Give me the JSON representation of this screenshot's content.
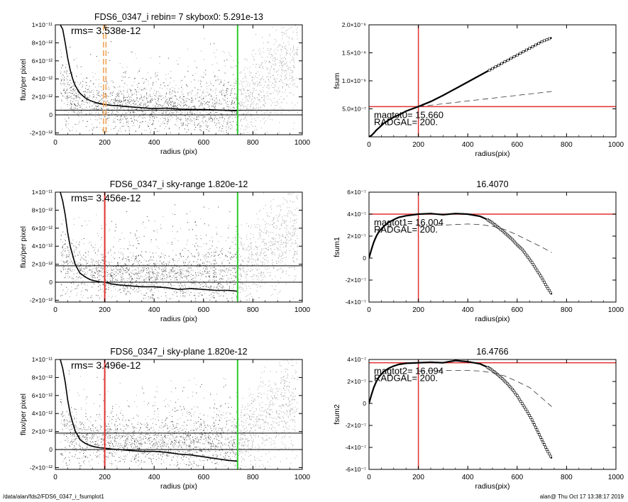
{
  "footer": {
    "path": "/data/alan/fds2/FDS6_0347_i_fsumplot1",
    "stamp": "alan@  Thu Oct 17 13:38:17 2019"
  },
  "colors": {
    "scatter_light": "#a6a6a6",
    "scatter_dark": "#404040",
    "red": "#e03030",
    "green": "#2ecc2e",
    "orange": "#f0a050"
  },
  "chart_data": [
    {
      "type": "scatter",
      "title": "FDS6_0347_i rebin= 7    skybox0:  5.291e-13",
      "xlabel": "radius (pix)",
      "ylabel": "flux/per pixel",
      "xlim": [
        0,
        1000
      ],
      "ylim": [
        -2.2e-12,
        1e-11
      ],
      "xticks": [
        0,
        200,
        400,
        600,
        800,
        1000
      ],
      "xticklabels": [
        "0",
        "200",
        "400",
        "600",
        "800",
        "1000"
      ],
      "yticks": [
        -2e-12,
        0,
        2e-12,
        4e-12,
        6e-12,
        8e-12,
        1e-11
      ],
      "yticklabels": [
        "-2×10⁻¹²",
        "0",
        "2×10⁻¹²",
        "4×10⁻¹²",
        "6×10⁻¹²",
        "8×10⁻¹²",
        "1×10⁻¹¹"
      ],
      "annotation": "rms= 3.538e-12",
      "hlines": [
        {
          "y": 0,
          "color": "#000000"
        },
        {
          "y": 5.291e-13,
          "color": "#000000"
        }
      ],
      "vlines": [
        {
          "x": 195,
          "color": "#f0a050",
          "dash": true
        },
        {
          "x": 205,
          "color": "#f0a050",
          "dash": true
        },
        {
          "x": 738,
          "color": "#2ecc2e"
        }
      ],
      "profile": {
        "x": [
          20,
          30,
          40,
          50,
          60,
          70,
          80,
          90,
          100,
          120,
          140,
          160,
          180,
          200,
          230,
          260,
          300,
          350,
          400,
          450,
          500,
          550,
          600,
          650,
          700,
          740
        ],
        "y": [
          1e-11,
          9.5e-12,
          8e-12,
          6.3e-12,
          5e-12,
          4e-12,
          3.3e-12,
          2.8e-12,
          2.4e-12,
          1.9e-12,
          1.6e-12,
          1.4e-12,
          1.25e-12,
          1.15e-12,
          1.05e-12,
          1e-12,
          9e-13,
          8e-13,
          7e-13,
          7.5e-13,
          6.5e-13,
          6e-13,
          6e-13,
          5.5e-13,
          5e-13,
          4.5e-13
        ]
      }
    },
    {
      "type": "line",
      "title": "",
      "xlabel": "radius(pix)",
      "ylabel": "fsum",
      "xlim": [
        0,
        1000
      ],
      "ylim": [
        0,
        2e-06
      ],
      "xticks": [
        0,
        200,
        400,
        600,
        800,
        1000
      ],
      "xticklabels": [
        "0",
        "200",
        "400",
        "600",
        "800",
        "1000"
      ],
      "yticks": [
        5e-07,
        1e-06,
        1.5e-06,
        2e-06
      ],
      "yticklabels": [
        "5.0×10⁻⁷",
        "1.0×10⁻⁶",
        "1.5×10⁻⁶",
        "2.0×10⁻⁶"
      ],
      "annotations": [
        "magtot0= 15.660",
        "RADGAL=    200."
      ],
      "hlines": [
        {
          "y": 5.4e-07,
          "color": "#e03030"
        }
      ],
      "vlines": [
        {
          "x": 200,
          "color": "#e03030"
        }
      ],
      "series": [
        {
          "style": "markers",
          "x": [
            0,
            10,
            20,
            30,
            40,
            50,
            60,
            80,
            100,
            120,
            150,
            200,
            250,
            300,
            350,
            400,
            450,
            500,
            550,
            600,
            650,
            700,
            740
          ],
          "y": [
            0,
            2.5e-08,
            7e-08,
            1.2e-07,
            1.6e-07,
            2e-07,
            2.4e-07,
            3e-07,
            3.5e-07,
            3.9e-07,
            4.6e-07,
            5.4e-07,
            6.3e-07,
            7.4e-07,
            8.6e-07,
            9.8e-07,
            1.1e-06,
            1.22e-06,
            1.34e-06,
            1.46e-06,
            1.58e-06,
            1.7e-06,
            1.77e-06
          ]
        },
        {
          "style": "dashed",
          "x": [
            200,
            300,
            400,
            500,
            600,
            700,
            740
          ],
          "y": [
            5.4e-07,
            5.9e-07,
            6.4e-07,
            6.9e-07,
            7.4e-07,
            7.9e-07,
            8.1e-07
          ]
        }
      ]
    },
    {
      "type": "scatter",
      "title": "FDS6_0347_i sky-range  1.820e-12",
      "xlabel": "radius (pix)",
      "ylabel": "flux/per pixel",
      "xlim": [
        0,
        1000
      ],
      "ylim": [
        -2.2e-12,
        1e-11
      ],
      "xticks": [
        0,
        200,
        400,
        600,
        800,
        1000
      ],
      "xticklabels": [
        "0",
        "200",
        "400",
        "600",
        "800",
        "1000"
      ],
      "yticks": [
        -2e-12,
        0,
        2e-12,
        4e-12,
        6e-12,
        8e-12,
        1e-11
      ],
      "yticklabels": [
        "-2×10⁻¹²",
        "0",
        "2×10⁻¹²",
        "4×10⁻¹²",
        "6×10⁻¹²",
        "8×10⁻¹²",
        "1×10⁻¹¹"
      ],
      "annotation": "rms= 3.456e-12",
      "hlines": [
        {
          "y": 0,
          "color": "#000000"
        },
        {
          "y": 1.82e-12,
          "color": "#000000"
        }
      ],
      "vlines": [
        {
          "x": 200,
          "color": "#e03030"
        },
        {
          "x": 738,
          "color": "#2ecc2e"
        }
      ],
      "profile": {
        "x": [
          20,
          30,
          40,
          50,
          60,
          70,
          80,
          90,
          100,
          120,
          140,
          160,
          180,
          200,
          230,
          260,
          300,
          350,
          400,
          450,
          500,
          550,
          600,
          650,
          700,
          740
        ],
        "y": [
          1e-11,
          9e-12,
          7.5e-12,
          5.5e-12,
          4e-12,
          3e-12,
          2e-12,
          1.5e-12,
          1e-12,
          6e-13,
          3e-13,
          1.5e-13,
          5e-14,
          0.0,
          -2e-13,
          -3e-13,
          -4e-13,
          -5e-13,
          -5e-13,
          -6e-13,
          -8e-13,
          -7e-13,
          -8e-13,
          -9e-13,
          -9e-13,
          -1e-12
        ]
      }
    },
    {
      "type": "line",
      "title": "16.4070",
      "xlabel": "radius(pix)",
      "ylabel": "fsum1",
      "xlim": [
        0,
        1000
      ],
      "ylim": [
        -4e-07,
        6e-07
      ],
      "xticks": [
        0,
        200,
        400,
        600,
        800,
        1000
      ],
      "xticklabels": [
        "0",
        "200",
        "400",
        "600",
        "800",
        "1000"
      ],
      "yticks": [
        -4e-07,
        -2e-07,
        0,
        2e-07,
        4e-07,
        6e-07
      ],
      "yticklabels": [
        "-4×10⁻⁷",
        "-2×10⁻⁷",
        "0",
        "2×10⁻⁷",
        "4×10⁻⁷",
        "6×10⁻⁷"
      ],
      "annotations": [
        "magtot1= 16.004",
        "RADGAL=    200."
      ],
      "hlines": [
        {
          "y": 4e-07,
          "color": "#e03030"
        }
      ],
      "vlines": [
        {
          "x": 200,
          "color": "#e03030"
        }
      ],
      "series": [
        {
          "style": "markers",
          "x": [
            0,
            10,
            20,
            30,
            40,
            60,
            80,
            100,
            120,
            150,
            200,
            250,
            300,
            350,
            400,
            450,
            480,
            500,
            520,
            540,
            560,
            580,
            600,
            620,
            640,
            660,
            680,
            700,
            720,
            740
          ],
          "y": [
            0,
            8e-08,
            1.5e-07,
            2e-07,
            2.4e-07,
            2.9e-07,
            3.25e-07,
            3.5e-07,
            3.7e-07,
            3.85e-07,
            4e-07,
            4.05e-07,
            3.95e-07,
            4.05e-07,
            4e-07,
            3.8e-07,
            3.5e-07,
            3.2e-07,
            2.85e-07,
            2.5e-07,
            2.1e-07,
            1.7e-07,
            1.2e-07,
            8e-08,
            2e-08,
            -4e-08,
            -1.1e-07,
            -1.8e-07,
            -2.6e-07,
            -3.3e-07
          ]
        },
        {
          "style": "dashed",
          "x": [
            200,
            300,
            400,
            450,
            500,
            550,
            600,
            650,
            700,
            740
          ],
          "y": [
            2.9e-07,
            3e-07,
            3.1e-07,
            3.05e-07,
            2.9e-07,
            2.6e-07,
            2.1e-07,
            1.55e-07,
            1e-07,
            5e-08
          ]
        }
      ]
    },
    {
      "type": "scatter",
      "title": "FDS6_0347_i sky-plane  1.820e-12",
      "xlabel": "radius (pix)",
      "ylabel": "flux/per pixel",
      "xlim": [
        0,
        1000
      ],
      "ylim": [
        -2.2e-12,
        1e-11
      ],
      "xticks": [
        0,
        200,
        400,
        600,
        800,
        1000
      ],
      "xticklabels": [
        "0",
        "200",
        "400",
        "600",
        "800",
        "1000"
      ],
      "yticks": [
        -2e-12,
        0,
        2e-12,
        4e-12,
        6e-12,
        8e-12,
        1e-11
      ],
      "yticklabels": [
        "-2×10⁻¹²",
        "0",
        "2×10⁻¹²",
        "4×10⁻¹²",
        "6×10⁻¹²",
        "8×10⁻¹²",
        "1×10⁻¹¹"
      ],
      "annotation": "rms= 3.496e-12",
      "hlines": [
        {
          "y": 0,
          "color": "#000000"
        },
        {
          "y": 1.82e-12,
          "color": "#000000"
        }
      ],
      "vlines": [
        {
          "x": 200,
          "color": "#e03030"
        },
        {
          "x": 738,
          "color": "#2ecc2e"
        }
      ],
      "profile": {
        "x": [
          20,
          30,
          40,
          50,
          60,
          70,
          80,
          90,
          100,
          120,
          140,
          160,
          180,
          200,
          230,
          260,
          300,
          350,
          400,
          450,
          500,
          550,
          600,
          650,
          700,
          740
        ],
        "y": [
          1e-11,
          9e-12,
          7.5e-12,
          5.5e-12,
          4e-12,
          3e-12,
          2.1e-12,
          1.6e-12,
          1.1e-12,
          7e-13,
          4.5e-13,
          3e-13,
          2e-13,
          1.5e-13,
          5e-14,
          0.0,
          -1e-13,
          -2e-13,
          -2e-13,
          -3e-13,
          -5e-13,
          -6e-13,
          -8e-13,
          -1e-12,
          -1.2e-12,
          -1.3e-12
        ]
      }
    },
    {
      "type": "line",
      "title": "16.4766",
      "xlabel": "radius(pix)",
      "ylabel": "fsum2",
      "xlim": [
        0,
        1000
      ],
      "ylim": [
        -6e-07,
        4e-07
      ],
      "xticks": [
        0,
        200,
        400,
        600,
        800,
        1000
      ],
      "xticklabels": [
        "0",
        "200",
        "400",
        "600",
        "800",
        "1000"
      ],
      "yticks": [
        -6e-07,
        -4e-07,
        -2e-07,
        0,
        2e-07,
        4e-07
      ],
      "yticklabels": [
        "-6×10⁻⁷",
        "-4×10⁻⁷",
        "-2×10⁻⁷",
        "0",
        "2×10⁻⁷",
        "4×10⁻⁷"
      ],
      "annotations": [
        "magtot2= 16.094",
        "RADGAL=    200."
      ],
      "hlines": [
        {
          "y": 3.7e-07,
          "color": "#e03030"
        }
      ],
      "vlines": [
        {
          "x": 200,
          "color": "#e03030"
        }
      ],
      "series": [
        {
          "style": "markers",
          "x": [
            0,
            10,
            20,
            30,
            40,
            60,
            80,
            100,
            120,
            150,
            200,
            250,
            300,
            350,
            400,
            450,
            480,
            500,
            520,
            540,
            560,
            580,
            600,
            620,
            640,
            660,
            680,
            700,
            720,
            740
          ],
          "y": [
            0,
            8e-08,
            1.5e-07,
            2e-07,
            2.4e-07,
            2.9e-07,
            3.2e-07,
            3.4e-07,
            3.55e-07,
            3.65e-07,
            3.7e-07,
            3.75e-07,
            3.7e-07,
            3.9e-07,
            3.8e-07,
            3.6e-07,
            3.3e-07,
            3e-07,
            2.65e-07,
            2.25e-07,
            1.8e-07,
            1.3e-07,
            7e-08,
            0,
            -7e-08,
            -1.5e-07,
            -2.4e-07,
            -3.3e-07,
            -4.2e-07,
            -5e-07
          ]
        },
        {
          "style": "dashed",
          "x": [
            200,
            300,
            400,
            450,
            500,
            550,
            600,
            650,
            700,
            740
          ],
          "y": [
            2.95e-07,
            3e-07,
            3e-07,
            2.95e-07,
            2.8e-07,
            2.5e-07,
            2e-07,
            1.45e-07,
            5e-08,
            -3e-08
          ]
        }
      ]
    }
  ]
}
